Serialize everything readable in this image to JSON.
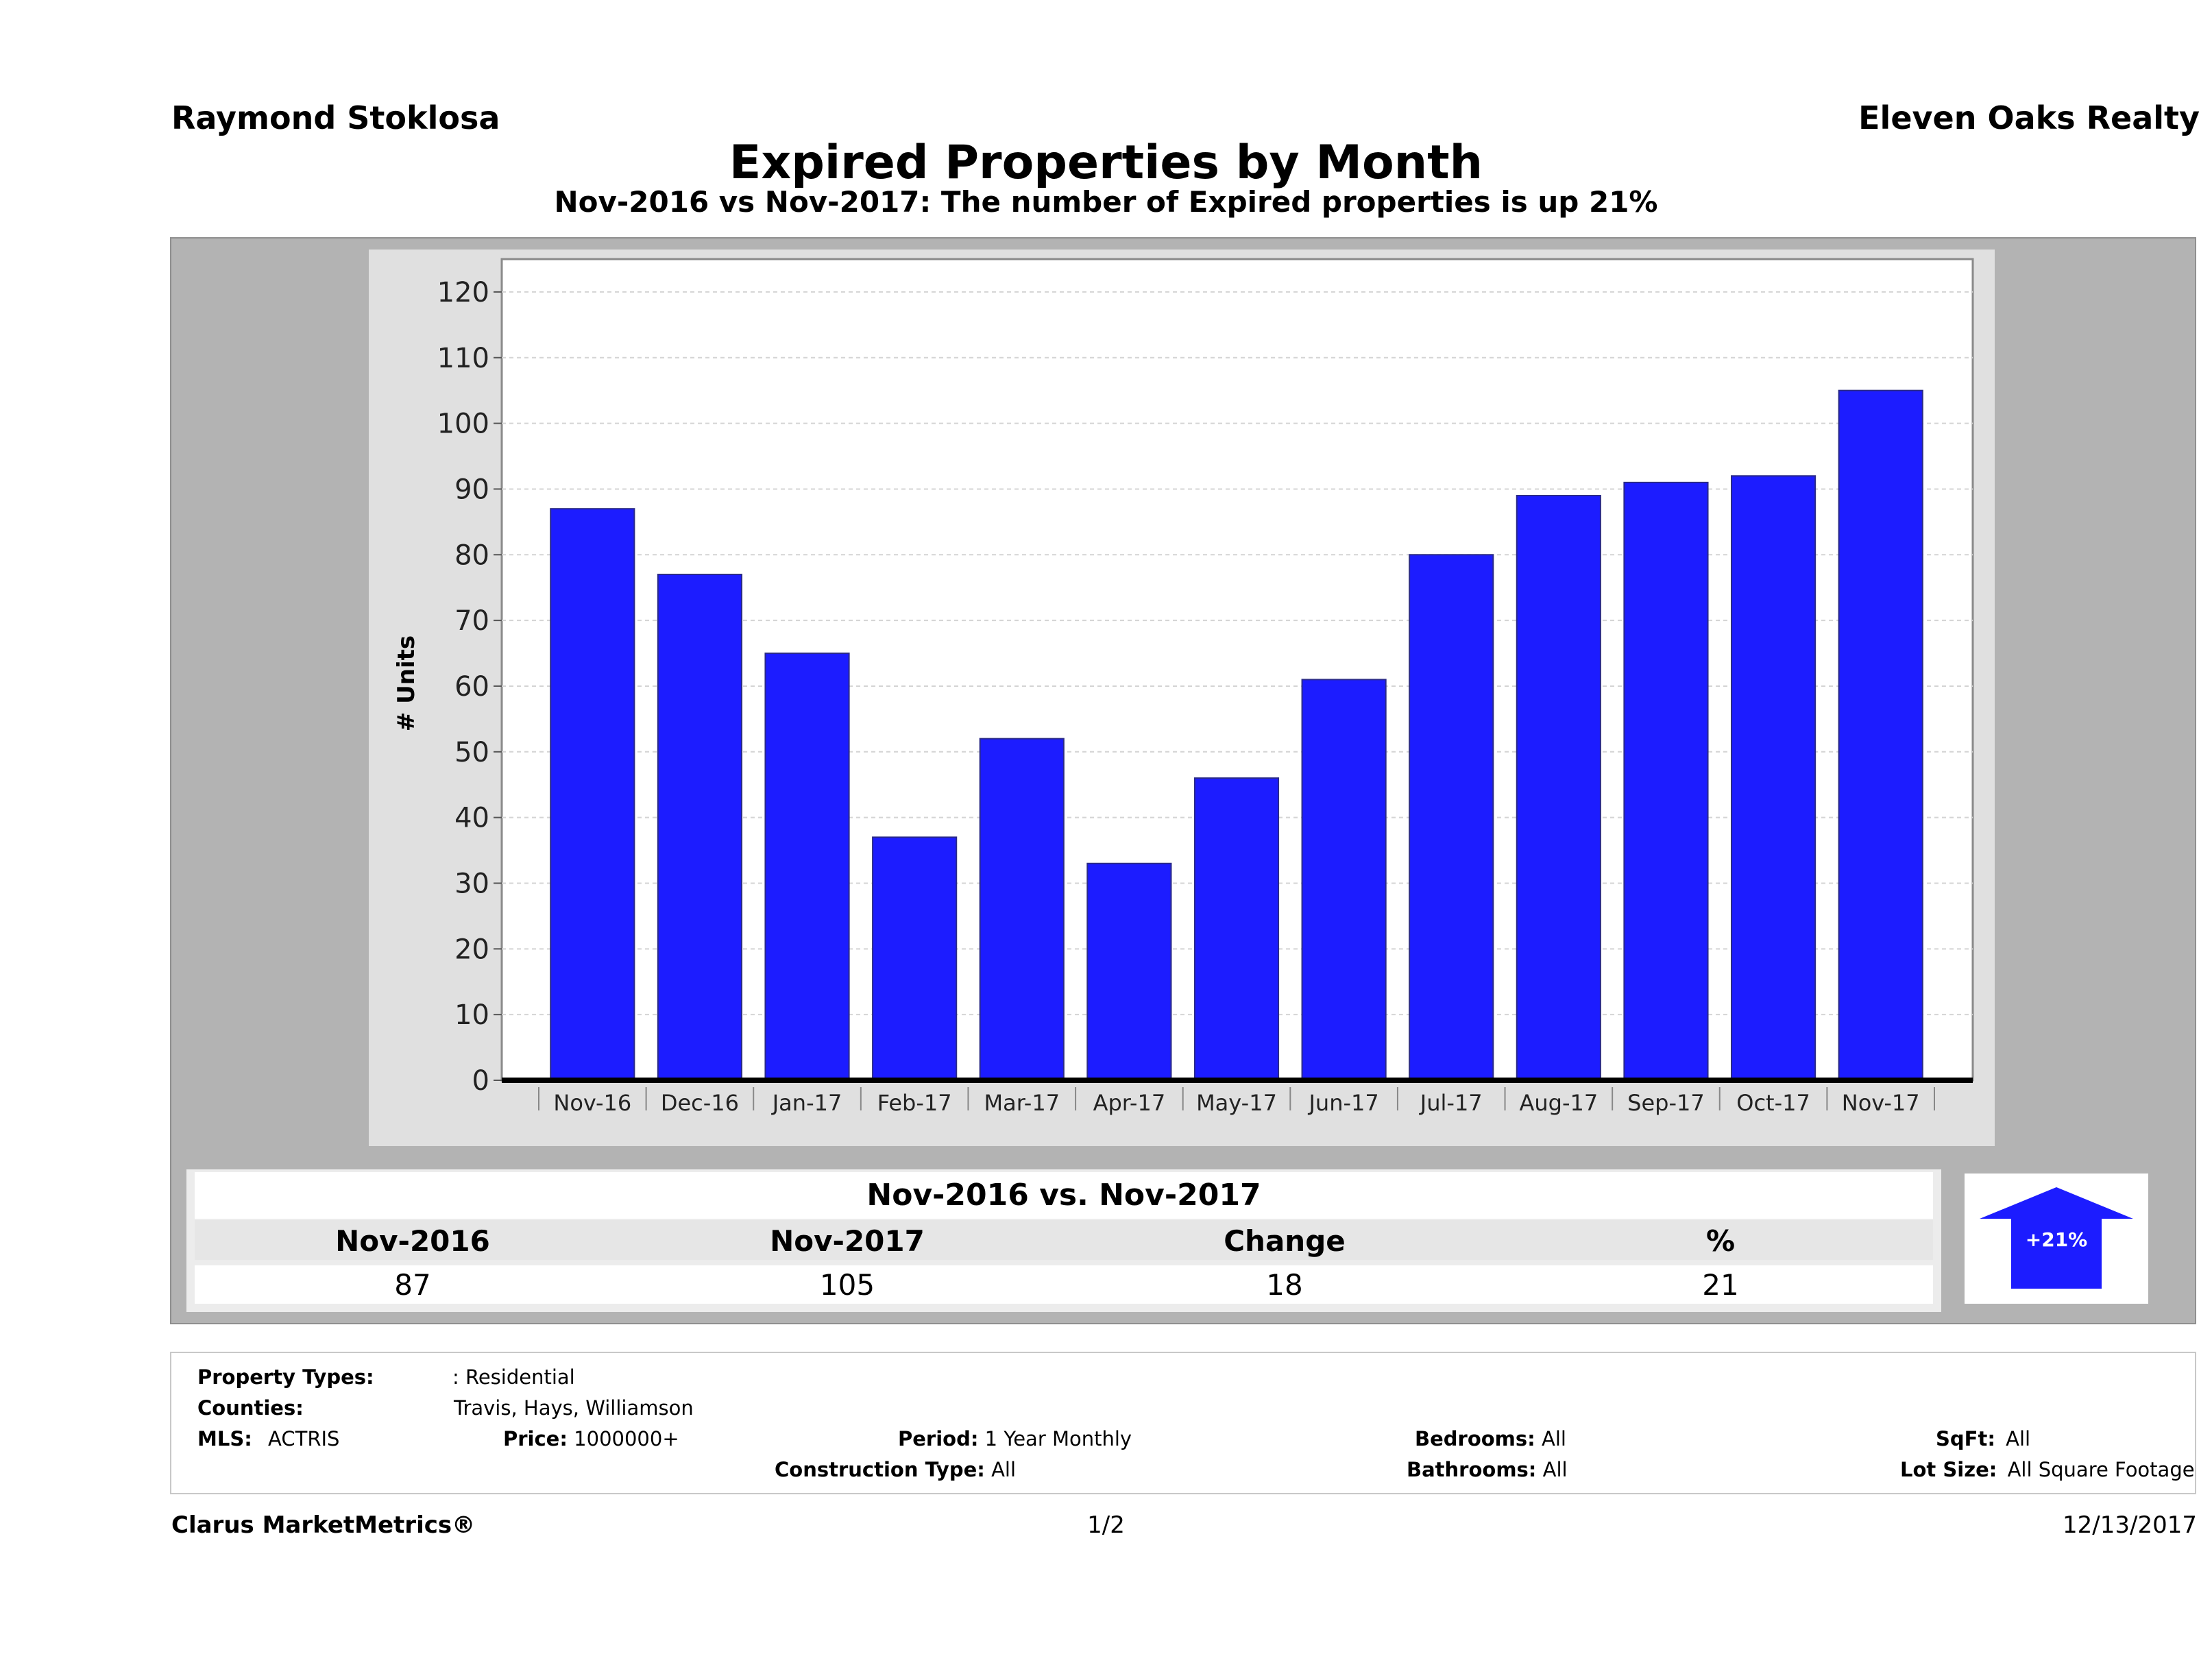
{
  "header": {
    "agent_name": "Raymond Stoklosa",
    "company": "Eleven Oaks Realty",
    "title": "Expired Properties by Month",
    "subtitle": "Nov-2016 vs Nov-2017: The number of Expired  properties is up 21%"
  },
  "chart_data": {
    "type": "bar",
    "title": "Expired Properties by Month",
    "subtitle": "Nov-2016 vs Nov-2017: The number of Expired  properties is up 21%",
    "ylabel": "# Units",
    "xlabel": "",
    "categories": [
      "Nov-16",
      "Dec-16",
      "Jan-17",
      "Feb-17",
      "Mar-17",
      "Apr-17",
      "May-17",
      "Jun-17",
      "Jul-17",
      "Aug-17",
      "Sep-17",
      "Oct-17",
      "Nov-17"
    ],
    "values": [
      87,
      77,
      65,
      37,
      52,
      33,
      46,
      61,
      80,
      89,
      91,
      92,
      105
    ],
    "ylim": [
      0,
      125
    ],
    "yticks": [
      0,
      10,
      20,
      30,
      40,
      50,
      60,
      70,
      80,
      90,
      100,
      110,
      120
    ],
    "bar_color": "#1c1cff",
    "grid": true
  },
  "comparison": {
    "title": "Nov-2016 vs. Nov-2017",
    "columns": [
      "Nov-2016",
      "Nov-2017",
      "Change",
      "%"
    ],
    "values": [
      "87",
      "105",
      "18",
      "21"
    ],
    "arrow_label": "+21%",
    "arrow_direction": "up",
    "arrow_color": "#1c1cff"
  },
  "criteria": {
    "property_types_label": "Property Types:",
    "property_types_value": ": Residential",
    "counties_label": "Counties:",
    "counties_value": "Travis, Hays, Williamson",
    "mls_label": "MLS:",
    "mls_value": "ACTRIS",
    "price_label": "Price:",
    "price_value": "1000000+",
    "period_label": "Period:",
    "period_value": "1 Year Monthly",
    "construction_label": "Construction Type:",
    "construction_value": "All",
    "bedrooms_label": "Bedrooms:",
    "bedrooms_value": "All",
    "bathrooms_label": "Bathrooms:",
    "bathrooms_value": "All",
    "sqft_label": "SqFt:",
    "sqft_value": "All",
    "lot_size_label": "Lot Size:",
    "lot_size_value": "All Square Footage"
  },
  "footer": {
    "brand": "Clarus MarketMetrics®",
    "page": "1/2",
    "date": "12/13/2017"
  }
}
